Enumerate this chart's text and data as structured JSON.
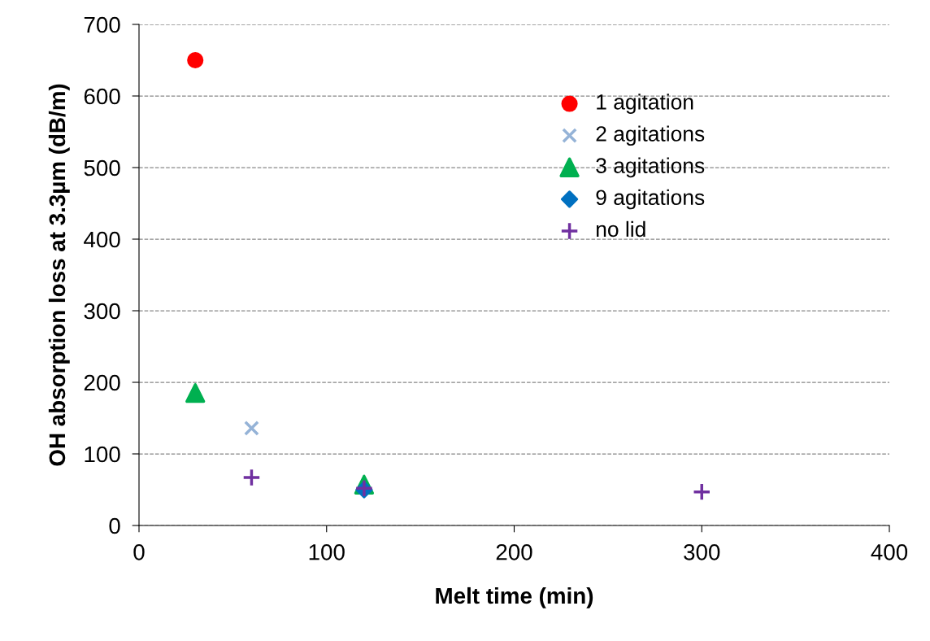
{
  "chart_data": {
    "type": "scatter",
    "xlabel": "Melt time (min)",
    "ylabel": "OH absorption loss at 3.3µm (dB/m)",
    "xlim": [
      0,
      400
    ],
    "xticks": [
      0,
      100,
      200,
      300,
      400
    ],
    "ylim": [
      0,
      700
    ],
    "yticks": [
      0,
      100,
      200,
      300,
      400,
      500,
      600,
      700
    ],
    "grid": "y",
    "legend": "top right",
    "series": [
      {
        "name": "1 agitation",
        "color": "#ff0000",
        "marker": "circle",
        "x": [
          30
        ],
        "values": [
          650
        ]
      },
      {
        "name": "2 agitations",
        "color": "#95b3d7",
        "marker": "cross",
        "x": [
          60
        ],
        "values": [
          136
        ]
      },
      {
        "name": "3 agitations",
        "color": "#00b050",
        "marker": "triangle",
        "x": [
          30,
          120
        ],
        "values": [
          185,
          57
        ]
      },
      {
        "name": "9 agitations",
        "color": "#0070c0",
        "marker": "diamond",
        "x": [
          120
        ],
        "values": [
          50
        ]
      },
      {
        "name": "no lid",
        "color": "#7030a0",
        "marker": "plus",
        "x": [
          60,
          120,
          300
        ],
        "values": [
          67,
          52,
          47
        ]
      }
    ]
  }
}
